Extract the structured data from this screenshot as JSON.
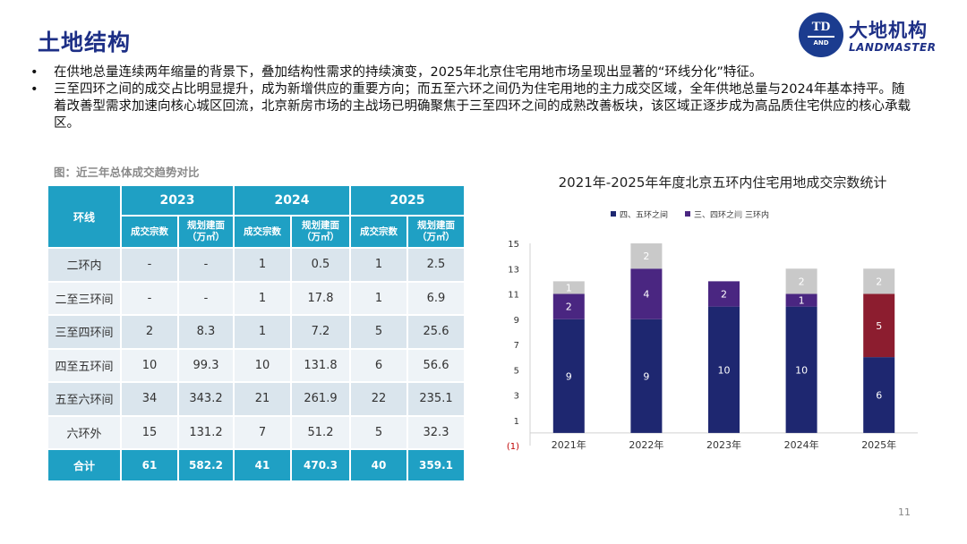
{
  "page": {
    "title": "土地结构",
    "page_number": "11"
  },
  "logo": {
    "mark_text": "TD",
    "mark_sub": "AND",
    "cn": "大地机构",
    "en": "LANDMASTER"
  },
  "bullets": [
    "在供地总量连续两年缩量的背景下，叠加结构性需求的持续演变，2025年北京住宅用地市场呈现出显著的“环线分化”特征。",
    "三至四环之间的成交占比明显提升，成为新增供应的重要方向；而五至六环之间仍为住宅用地的主力成交区域，全年供地总量与2024年基本持平。随着改善型需求加速向核心城区回流，北京新房市场的主战场已明确聚焦于三至四环之间的成熟改善板块，该区域正逐步成为高品质住宅供应的核心承载区。"
  ],
  "bullet_symbol": "•",
  "table": {
    "caption": "图：近三年总体成交趋势对比",
    "ring_header": "环线",
    "years": [
      "2023",
      "2024",
      "2025"
    ],
    "sub_headers": {
      "count": "成交宗数",
      "area_line1": "规划建面",
      "area_line2": "（万㎡）"
    },
    "rows": [
      {
        "ring": "二环内",
        "values": [
          "-",
          "-",
          "1",
          "0.5",
          "1",
          "2.5"
        ]
      },
      {
        "ring": "二至三环间",
        "values": [
          "-",
          "-",
          "1",
          "17.8",
          "1",
          "6.9"
        ]
      },
      {
        "ring": "三至四环间",
        "values": [
          "2",
          "8.3",
          "1",
          "7.2",
          "5",
          "25.6"
        ]
      },
      {
        "ring": "四至五环间",
        "values": [
          "10",
          "99.3",
          "10",
          "131.8",
          "6",
          "56.6"
        ]
      },
      {
        "ring": "五至六环间",
        "values": [
          "34",
          "343.2",
          "21",
          "261.9",
          "22",
          "235.1"
        ]
      },
      {
        "ring": "六环外",
        "values": [
          "15",
          "131.2",
          "7",
          "51.2",
          "5",
          "32.3"
        ]
      }
    ],
    "total": {
      "ring": "合计",
      "values": [
        "61",
        "582.2",
        "41",
        "470.3",
        "40",
        "359.1"
      ]
    }
  },
  "chart_data": {
    "type": "bar",
    "stacked": true,
    "title": "2021年-2025年年度北京五环内住宅用地成交宗数统计",
    "categories": [
      "2021年",
      "2022年",
      "2023年",
      "2024年",
      "2025年"
    ],
    "series": [
      {
        "name": "四、五环之间",
        "values": [
          9,
          9,
          10,
          10,
          6
        ],
        "colors": [
          "#1e2770",
          "#1e2770",
          "#1e2770",
          "#1e2770",
          "#1e2770"
        ]
      },
      {
        "name": "三、四环之间",
        "values": [
          2,
          4,
          2,
          1,
          5
        ],
        "colors": [
          "#4a2681",
          "#4a2681",
          "#4a2681",
          "#4a2681",
          "#8c1d2f"
        ]
      },
      {
        "name": "三环内",
        "values": [
          1,
          2,
          0,
          2,
          2
        ],
        "colors": [
          "#c9c9c9",
          "#c9c9c9",
          "#c9c9c9",
          "#c9c9c9",
          "#c9c9c9"
        ]
      }
    ],
    "legend_colors": [
      "#1e2770",
      "#4a2681",
      "#c9c9c9"
    ],
    "legend_position": "top",
    "y_ticks": [
      "15",
      "13",
      "11",
      "9",
      "7",
      "5",
      "3",
      "1",
      "(1)"
    ],
    "ylim": [
      -1,
      15
    ],
    "grid": false
  }
}
